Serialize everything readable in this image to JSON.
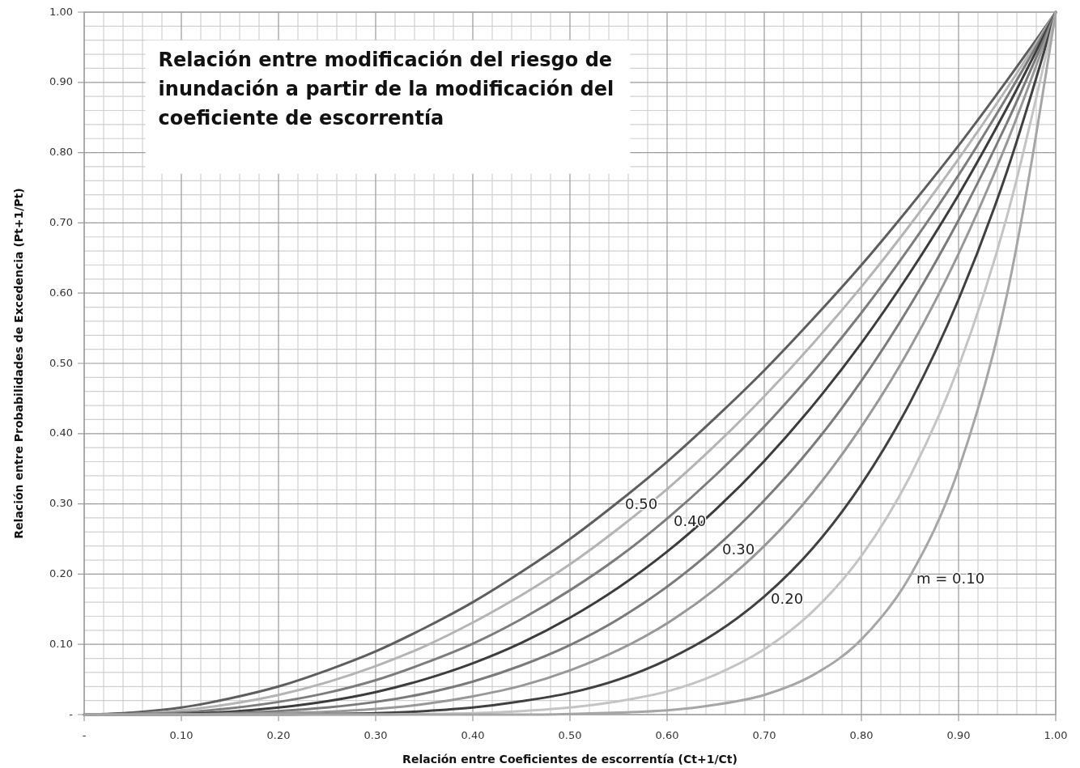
{
  "chart_data": {
    "type": "line",
    "title": "Relación entre modificación del riesgo de inundación a partir de la modificación del coeficiente de escorrentía",
    "xlabel": "Relación entre Coeficientes de escorrentía (Ct+1/Ct)",
    "ylabel": "Relación entre Probabilidades  de Excedencia (Pt+1/Pt)",
    "x": [
      0,
      0.05,
      0.1,
      0.15,
      0.2,
      0.25,
      0.3,
      0.35,
      0.4,
      0.45,
      0.5,
      0.55,
      0.6,
      0.65,
      0.7,
      0.75,
      0.8,
      0.85,
      0.9,
      0.95,
      1
    ],
    "series": [
      {
        "color": "#5e5e5e",
        "values": [
          0,
          0.003,
          0.01,
          0.023,
          0.04,
          0.063,
          0.09,
          0.123,
          0.16,
          0.203,
          0.25,
          0.303,
          0.36,
          0.423,
          0.49,
          0.563,
          0.64,
          0.723,
          0.81,
          0.903,
          1
        ]
      },
      {
        "color": "#b4b4b4",
        "values": [
          0,
          0.001,
          0.006,
          0.015,
          0.028,
          0.046,
          0.069,
          0.097,
          0.131,
          0.17,
          0.214,
          0.265,
          0.321,
          0.384,
          0.453,
          0.528,
          0.609,
          0.697,
          0.791,
          0.892,
          1
        ]
      },
      {
        "color": "#7c7c7c",
        "values": [
          0,
          0.001,
          0.003,
          0.009,
          0.018,
          0.031,
          0.049,
          0.073,
          0.101,
          0.136,
          0.177,
          0.224,
          0.279,
          0.341,
          0.41,
          0.487,
          0.572,
          0.666,
          0.768,
          0.88,
          1
        ]
      },
      {
        "color": "#3c3c3c",
        "values": [
          0,
          0,
          0.001,
          0.004,
          0.01,
          0.019,
          0.032,
          0.05,
          0.073,
          0.102,
          0.138,
          0.181,
          0.232,
          0.292,
          0.361,
          0.44,
          0.529,
          0.629,
          0.74,
          0.864,
          1
        ]
      },
      {
        "color": "#7a7a7a",
        "values": [
          0,
          0,
          0,
          0.002,
          0.005,
          0.01,
          0.018,
          0.03,
          0.047,
          0.07,
          0.099,
          0.136,
          0.182,
          0.238,
          0.305,
          0.383,
          0.475,
          0.582,
          0.704,
          0.843,
          1
        ]
      },
      {
        "color": "#989898",
        "values": [
          0,
          0,
          0,
          0.001,
          0.002,
          0.004,
          0.008,
          0.015,
          0.026,
          0.041,
          0.063,
          0.092,
          0.13,
          0.179,
          0.24,
          0.316,
          0.41,
          0.522,
          0.656,
          0.815,
          1
        ]
      },
      {
        "color": "#404040",
        "values": [
          0,
          0,
          0,
          0,
          0,
          0.001,
          0.002,
          0.005,
          0.01,
          0.019,
          0.031,
          0.05,
          0.078,
          0.116,
          0.168,
          0.237,
          0.328,
          0.444,
          0.591,
          0.774,
          1
        ]
      },
      {
        "color": "#c4c4c4",
        "values": [
          0,
          0,
          0,
          0,
          0,
          0,
          0,
          0.001,
          0.002,
          0.005,
          0.01,
          0.019,
          0.033,
          0.057,
          0.093,
          0.147,
          0.226,
          0.339,
          0.495,
          0.71,
          1
        ]
      },
      {
        "color": "#a6a6a6",
        "values": [
          0,
          0,
          0,
          0,
          0,
          0,
          0,
          0,
          0,
          0,
          0.001,
          0.003,
          0.006,
          0.014,
          0.028,
          0.056,
          0.107,
          0.197,
          0.349,
          0.599,
          1
        ]
      }
    ],
    "xlim": [
      0,
      1
    ],
    "ylim": [
      0,
      1
    ],
    "xticks": [
      {
        "value": 0,
        "label": "-"
      },
      {
        "value": 0.1,
        "label": "0.10"
      },
      {
        "value": 0.2,
        "label": "0.20"
      },
      {
        "value": 0.3,
        "label": "0.30"
      },
      {
        "value": 0.4,
        "label": "0.40"
      },
      {
        "value": 0.5,
        "label": "0.50"
      },
      {
        "value": 0.6,
        "label": "0.60"
      },
      {
        "value": 0.7,
        "label": "0.70"
      },
      {
        "value": 0.8,
        "label": "0.80"
      },
      {
        "value": 0.9,
        "label": "0.90"
      },
      {
        "value": 1,
        "label": "1.00"
      }
    ],
    "yticks": [
      {
        "value": 0,
        "label": "-"
      },
      {
        "value": 0.1,
        "label": "0.10"
      },
      {
        "value": 0.2,
        "label": "0.20"
      },
      {
        "value": 0.3,
        "label": "0.30"
      },
      {
        "value": 0.4,
        "label": "0.40"
      },
      {
        "value": 0.5,
        "label": "0.50"
      },
      {
        "value": 0.6,
        "label": "0.60"
      },
      {
        "value": 0.7,
        "label": "0.70"
      },
      {
        "value": 0.8,
        "label": "0.80"
      },
      {
        "value": 0.9,
        "label": "0.90"
      },
      {
        "value": 1,
        "label": "1.00"
      }
    ],
    "grid": true,
    "marker": "none",
    "line_style": "solid",
    "annotations": [
      {
        "text": "0.50",
        "x": 0.55,
        "y": 0.303
      },
      {
        "text": "0.40",
        "x": 0.6,
        "y": 0.279
      },
      {
        "text": "0.30",
        "x": 0.65,
        "y": 0.238
      },
      {
        "text": "0.20",
        "x": 0.7,
        "y": 0.168
      },
      {
        "text": "m = 0.10",
        "x": 0.85,
        "y": 0.197
      }
    ]
  }
}
